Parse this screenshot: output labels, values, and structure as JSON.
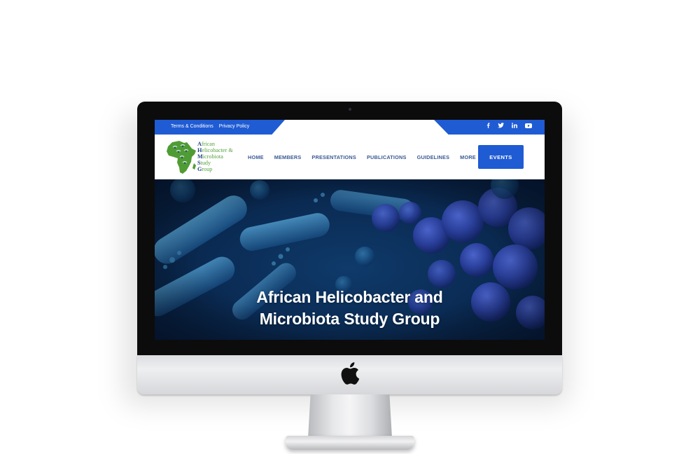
{
  "topbar": {
    "links": [
      "Terms & Conditions",
      "Privacy Policy"
    ],
    "social_icons": [
      "facebook-icon",
      "twitter-icon",
      "linkedin-icon",
      "youtube-icon"
    ]
  },
  "logo": {
    "lines": [
      {
        "cap": "A",
        "rest": "frican"
      },
      {
        "cap": "H",
        "rest": "elicobacter &"
      },
      {
        "cap": "M",
        "rest": "icrobiota"
      },
      {
        "cap": "S",
        "rest": "tudy"
      },
      {
        "cap": "G",
        "rest": "roup"
      }
    ]
  },
  "nav": {
    "items": [
      "HOME",
      "MEMBERS",
      "PRESENTATIONS",
      "PUBLICATIONS",
      "GUIDELINES",
      "MORE"
    ],
    "cta": "EVENTS"
  },
  "hero": {
    "title_line1": "African Helicobacter and",
    "title_line2": "Microbiota Study Group"
  },
  "colors": {
    "brand_blue": "#1f5bd3",
    "nav_text": "#3a5a94",
    "logo_green": "#54a23d",
    "logo_navy": "#1f3e86"
  }
}
